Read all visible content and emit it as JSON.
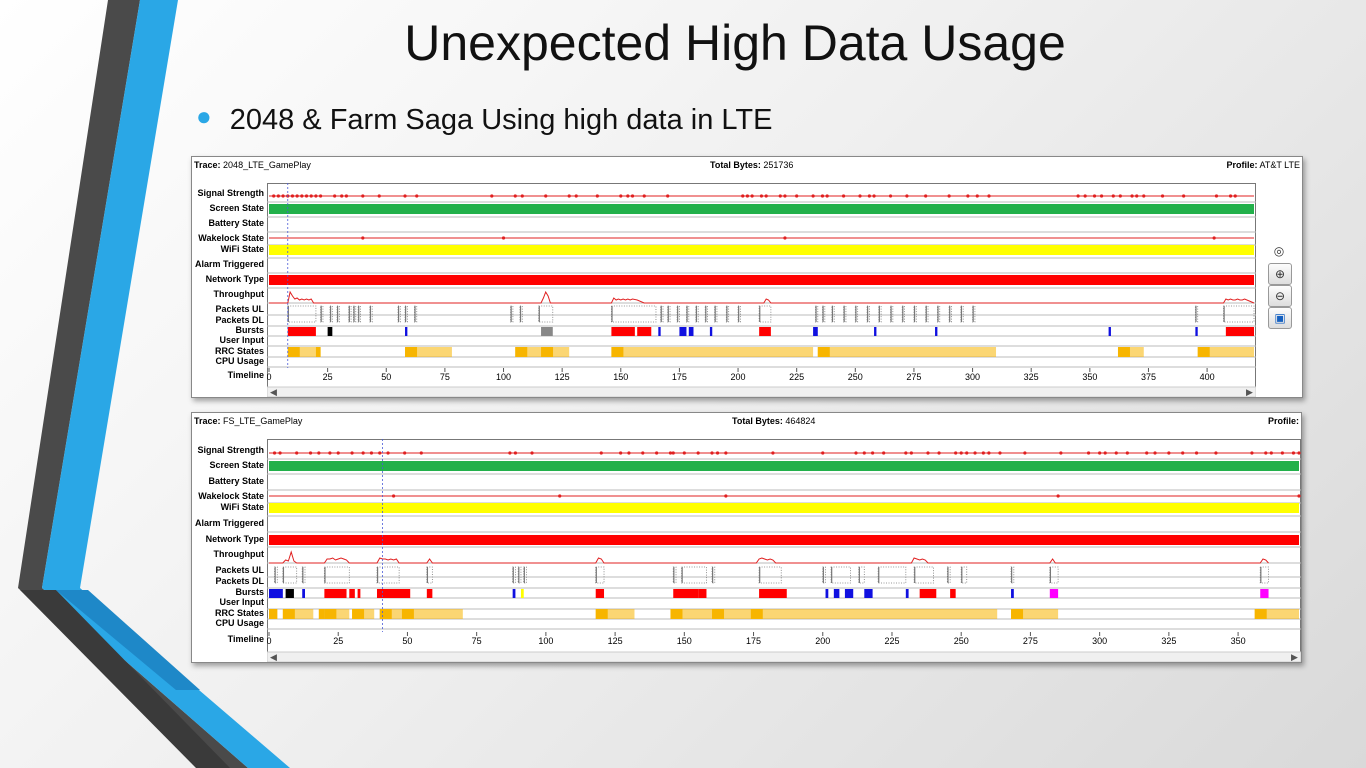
{
  "slide": {
    "title": "Unexpected High Data Usage",
    "bullet": "2048 & Farm Saga Using high data in LTE"
  },
  "colors": {
    "accent_blue": "#2aa7e6",
    "signal": "#e02020",
    "screen_on": "#22b04a",
    "wifi": "#ffff00",
    "network_lte": "#ff0000",
    "burst_red": "#ff0000",
    "burst_blue": "#1010e0",
    "burst_black": "#000000",
    "burst_magenta": "#ff00ff",
    "rrc_orange": "#f7b500",
    "packets": "#777777"
  },
  "row_labels": [
    "Signal Strength",
    "Screen State",
    "Battery State",
    "Wakelock State",
    "WiFi State",
    "Alarm Triggered",
    "Network Type",
    "Throughput",
    "Packets UL",
    "Packets DL",
    "Bursts",
    "User Input",
    "RRC States",
    "CPU Usage",
    "Timeline"
  ],
  "trace1": {
    "trace_label": "Trace:",
    "trace_name": "2048_LTE_GamePlay",
    "total_label": "Total Bytes:",
    "total_bytes": "251736",
    "profile_label": "Profile:",
    "profile": "AT&T LTE",
    "timeline_max": 420,
    "ticks": [
      "0",
      "25",
      "50",
      "75",
      "100",
      "125",
      "150",
      "175",
      "200",
      "225",
      "250",
      "275",
      "300",
      "325",
      "350",
      "375",
      "400"
    ],
    "marker": 8,
    "signal_points": [
      2,
      4,
      6,
      8,
      10,
      12,
      14,
      16,
      18,
      20,
      22,
      28,
      31,
      33,
      40,
      47,
      58,
      63,
      95,
      105,
      108,
      118,
      128,
      131,
      140,
      150,
      153,
      155,
      160,
      170,
      202,
      204,
      206,
      210,
      212,
      218,
      220,
      225,
      232,
      236,
      238,
      245,
      252,
      256,
      258,
      265,
      272,
      280,
      290,
      298,
      302,
      307,
      345,
      348,
      352,
      355,
      360,
      363,
      368,
      370,
      373,
      381,
      390,
      404,
      410,
      412
    ],
    "wakelock_points": [
      40,
      100,
      220,
      403
    ],
    "throughput": [
      [
        0,
        1
      ],
      [
        8,
        1
      ],
      [
        9,
        12
      ],
      [
        10,
        8
      ],
      [
        11,
        5
      ],
      [
        12,
        6
      ],
      [
        13,
        4
      ],
      [
        14,
        5
      ],
      [
        15,
        4
      ],
      [
        16,
        5
      ],
      [
        17,
        4
      ],
      [
        18,
        5
      ],
      [
        19,
        1
      ],
      [
        116,
        1
      ],
      [
        117,
        6
      ],
      [
        118,
        12
      ],
      [
        119,
        8
      ],
      [
        120,
        1
      ],
      [
        146,
        1
      ],
      [
        147,
        6
      ],
      [
        148,
        4
      ],
      [
        149,
        5
      ],
      [
        150,
        4
      ],
      [
        151,
        5
      ],
      [
        152,
        4
      ],
      [
        153,
        5
      ],
      [
        154,
        4
      ],
      [
        155,
        5
      ],
      [
        157,
        4
      ],
      [
        160,
        1
      ],
      [
        211,
        1
      ],
      [
        212,
        5
      ],
      [
        213,
        4
      ],
      [
        214,
        1
      ],
      [
        407,
        1
      ],
      [
        408,
        5
      ],
      [
        409,
        4
      ],
      [
        410,
        5
      ],
      [
        411,
        4
      ],
      [
        412,
        4
      ],
      [
        413,
        5
      ],
      [
        414,
        4
      ],
      [
        415,
        4
      ],
      [
        416,
        5
      ],
      [
        418,
        3
      ],
      [
        420,
        1
      ]
    ],
    "packet_ranges": [
      [
        8,
        20
      ],
      [
        22,
        23
      ],
      [
        26,
        27
      ],
      [
        29,
        30
      ],
      [
        34,
        35
      ],
      [
        36,
        37
      ],
      [
        38,
        39
      ],
      [
        43,
        44
      ],
      [
        55,
        56
      ],
      [
        58,
        59
      ],
      [
        62,
        63
      ],
      [
        103,
        104
      ],
      [
        107,
        108
      ],
      [
        115,
        121
      ],
      [
        146,
        165
      ],
      [
        167,
        168
      ],
      [
        170,
        171
      ],
      [
        174,
        175
      ],
      [
        178,
        179
      ],
      [
        182,
        183
      ],
      [
        186,
        187
      ],
      [
        190,
        191
      ],
      [
        195,
        196
      ],
      [
        200,
        201
      ],
      [
        209,
        214
      ],
      [
        233,
        234
      ],
      [
        236,
        237
      ],
      [
        240,
        241
      ],
      [
        245,
        246
      ],
      [
        250,
        251
      ],
      [
        255,
        256
      ],
      [
        260,
        261
      ],
      [
        265,
        266
      ],
      [
        270,
        271
      ],
      [
        275,
        276
      ],
      [
        280,
        281
      ],
      [
        285,
        286
      ],
      [
        290,
        291
      ],
      [
        295,
        296
      ],
      [
        300,
        301
      ],
      [
        395,
        396
      ],
      [
        407,
        420
      ]
    ],
    "bursts": [
      [
        8,
        20,
        "red"
      ],
      [
        25,
        27,
        "black"
      ],
      [
        58,
        59,
        "blue"
      ],
      [
        116,
        121,
        "gray"
      ],
      [
        146,
        156,
        "red"
      ],
      [
        157,
        163,
        "red"
      ],
      [
        166,
        167,
        "blue"
      ],
      [
        175,
        178,
        "blue"
      ],
      [
        179,
        181,
        "blue"
      ],
      [
        188,
        189,
        "blue"
      ],
      [
        209,
        214,
        "red"
      ],
      [
        232,
        234,
        "blue"
      ],
      [
        258,
        259,
        "blue"
      ],
      [
        284,
        285,
        "blue"
      ],
      [
        358,
        359,
        "blue"
      ],
      [
        395,
        396,
        "blue"
      ],
      [
        408,
        420,
        "red"
      ]
    ],
    "rrc": [
      [
        8,
        20
      ],
      [
        20,
        22
      ],
      [
        58,
        78
      ],
      [
        105,
        116
      ],
      [
        116,
        128
      ],
      [
        146,
        232
      ],
      [
        234,
        310
      ],
      [
        362,
        373
      ],
      [
        396,
        420
      ]
    ]
  },
  "trace2": {
    "trace_label": "Trace:",
    "trace_name": "FS_LTE_GamePlay",
    "total_label": "Total Bytes:",
    "total_bytes": "464824",
    "profile_label": "Profile:",
    "profile": "",
    "timeline_max": 372,
    "ticks": [
      "0",
      "25",
      "50",
      "75",
      "100",
      "125",
      "150",
      "175",
      "200",
      "225",
      "250",
      "275",
      "300",
      "325",
      "350"
    ],
    "marker": 41,
    "signal_points": [
      2,
      4,
      10,
      15,
      18,
      22,
      25,
      30,
      34,
      37,
      40,
      43,
      49,
      55,
      87,
      89,
      95,
      120,
      127,
      130,
      135,
      140,
      145,
      146,
      150,
      155,
      160,
      162,
      165,
      182,
      200,
      212,
      215,
      218,
      222,
      230,
      232,
      238,
      242,
      248,
      250,
      252,
      255,
      258,
      260,
      264,
      273,
      286,
      296,
      300,
      302,
      306,
      310,
      317,
      320,
      325,
      330,
      335,
      342,
      355,
      360,
      362,
      366,
      370,
      372
    ],
    "wakelock_points": [
      45,
      105,
      165,
      285,
      372
    ],
    "throughput": [
      [
        0,
        1
      ],
      [
        5,
        1
      ],
      [
        6,
        4
      ],
      [
        7,
        3
      ],
      [
        8,
        12
      ],
      [
        9,
        3
      ],
      [
        10,
        1
      ],
      [
        20,
        1
      ],
      [
        21,
        5
      ],
      [
        22,
        5
      ],
      [
        23,
        6
      ],
      [
        24,
        4
      ],
      [
        25,
        5
      ],
      [
        26,
        6
      ],
      [
        27,
        5
      ],
      [
        28,
        4
      ],
      [
        29,
        1
      ],
      [
        39,
        1
      ],
      [
        40,
        6
      ],
      [
        41,
        5
      ],
      [
        42,
        5
      ],
      [
        43,
        4
      ],
      [
        44,
        5
      ],
      [
        45,
        4
      ],
      [
        46,
        5
      ],
      [
        47,
        1
      ],
      [
        57,
        1
      ],
      [
        58,
        5
      ],
      [
        59,
        1
      ],
      [
        118,
        1
      ],
      [
        119,
        6
      ],
      [
        120,
        5
      ],
      [
        121,
        1
      ],
      [
        176,
        1
      ],
      [
        177,
        5
      ],
      [
        178,
        6
      ],
      [
        179,
        5
      ],
      [
        180,
        4
      ],
      [
        181,
        5
      ],
      [
        182,
        4
      ],
      [
        183,
        1
      ],
      [
        232,
        1
      ],
      [
        233,
        6
      ],
      [
        234,
        5
      ],
      [
        235,
        4
      ],
      [
        236,
        5
      ],
      [
        237,
        4
      ],
      [
        238,
        1
      ],
      [
        282,
        1
      ],
      [
        283,
        5
      ],
      [
        284,
        1
      ],
      [
        358,
        1
      ],
      [
        359,
        5
      ],
      [
        360,
        4
      ],
      [
        361,
        1
      ]
    ],
    "packet_ranges": [
      [
        2,
        3
      ],
      [
        5,
        10
      ],
      [
        12,
        13
      ],
      [
        20,
        29
      ],
      [
        39,
        47
      ],
      [
        57,
        59
      ],
      [
        88,
        89
      ],
      [
        90,
        91
      ],
      [
        92,
        93
      ],
      [
        118,
        121
      ],
      [
        146,
        147
      ],
      [
        149,
        158
      ],
      [
        160,
        161
      ],
      [
        177,
        185
      ],
      [
        200,
        201
      ],
      [
        203,
        210
      ],
      [
        213,
        215
      ],
      [
        220,
        230
      ],
      [
        233,
        240
      ],
      [
        245,
        246
      ],
      [
        250,
        252
      ],
      [
        268,
        269
      ],
      [
        282,
        285
      ],
      [
        358,
        361
      ]
    ],
    "bursts": [
      [
        0,
        5,
        "blue"
      ],
      [
        6,
        9,
        "black"
      ],
      [
        12,
        13,
        "blue"
      ],
      [
        20,
        28,
        "red"
      ],
      [
        29,
        31,
        "red"
      ],
      [
        32,
        33,
        "red"
      ],
      [
        39,
        51,
        "red"
      ],
      [
        57,
        59,
        "red"
      ],
      [
        88,
        89,
        "blue"
      ],
      [
        91,
        92,
        "yellow"
      ],
      [
        118,
        121,
        "red"
      ],
      [
        146,
        155,
        "red"
      ],
      [
        155,
        158,
        "red"
      ],
      [
        177,
        187,
        "red"
      ],
      [
        201,
        202,
        "blue"
      ],
      [
        204,
        206,
        "blue"
      ],
      [
        208,
        211,
        "blue"
      ],
      [
        215,
        218,
        "blue"
      ],
      [
        230,
        231,
        "blue"
      ],
      [
        235,
        241,
        "red"
      ],
      [
        246,
        248,
        "red"
      ],
      [
        268,
        269,
        "blue"
      ],
      [
        282,
        285,
        "magenta"
      ],
      [
        358,
        361,
        "magenta"
      ]
    ],
    "rrc": [
      [
        0,
        3
      ],
      [
        5,
        16
      ],
      [
        18,
        20
      ],
      [
        20,
        29
      ],
      [
        30,
        38
      ],
      [
        40,
        48
      ],
      [
        48,
        70
      ],
      [
        118,
        132
      ],
      [
        145,
        160
      ],
      [
        160,
        174
      ],
      [
        174,
        263
      ],
      [
        268,
        285
      ],
      [
        356,
        372
      ]
    ]
  }
}
